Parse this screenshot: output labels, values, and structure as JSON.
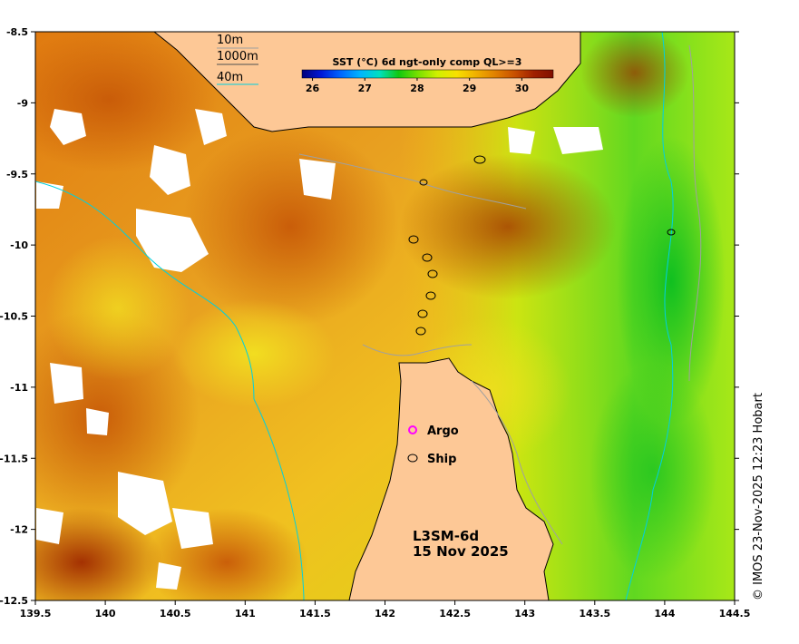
{
  "map": {
    "lon_range": [
      139.5,
      144.5
    ],
    "lat_range": [
      -12.5,
      -8.5
    ],
    "lon_ticks": [
      "139.5",
      "140",
      "140.5",
      "141",
      "141.5",
      "142",
      "142.5",
      "143",
      "143.5",
      "144",
      "144.5"
    ],
    "lat_ticks": [
      "-8.5",
      "-9",
      "-9.5",
      "-10",
      "-10.5",
      "-11",
      "-11.5",
      "-12",
      "-12.5"
    ]
  },
  "colorbar": {
    "title": "SST (°C) 6d ngt-only comp QL>=3",
    "range": [
      25.8,
      30.6
    ],
    "ticks": [
      "26",
      "27",
      "28",
      "29",
      "30"
    ],
    "colors": [
      "#00007a",
      "#0018d8",
      "#0066ff",
      "#00b4ff",
      "#00e0c0",
      "#10c810",
      "#78e000",
      "#d0f000",
      "#f8e000",
      "#f0b000",
      "#e08000",
      "#c85000",
      "#a02000",
      "#801000"
    ]
  },
  "depth_legend": {
    "items": [
      "10m",
      "1000m",
      "40m"
    ],
    "colors": [
      "#a0a0a0",
      "#505050",
      "#00d0e0"
    ]
  },
  "obs_legend": {
    "argo_label": "Argo",
    "ship_label": "Ship",
    "argo_color": "#ff00ff",
    "ship_color": "#000000"
  },
  "product": {
    "name": "L3SM-6d",
    "date": "15 Nov 2025"
  },
  "credit": "© IMOS 23-Nov-2025 12:23 Hobart",
  "colors": {
    "land": "#fdc896",
    "coast": "#000000",
    "cloud": "#ffffff"
  }
}
